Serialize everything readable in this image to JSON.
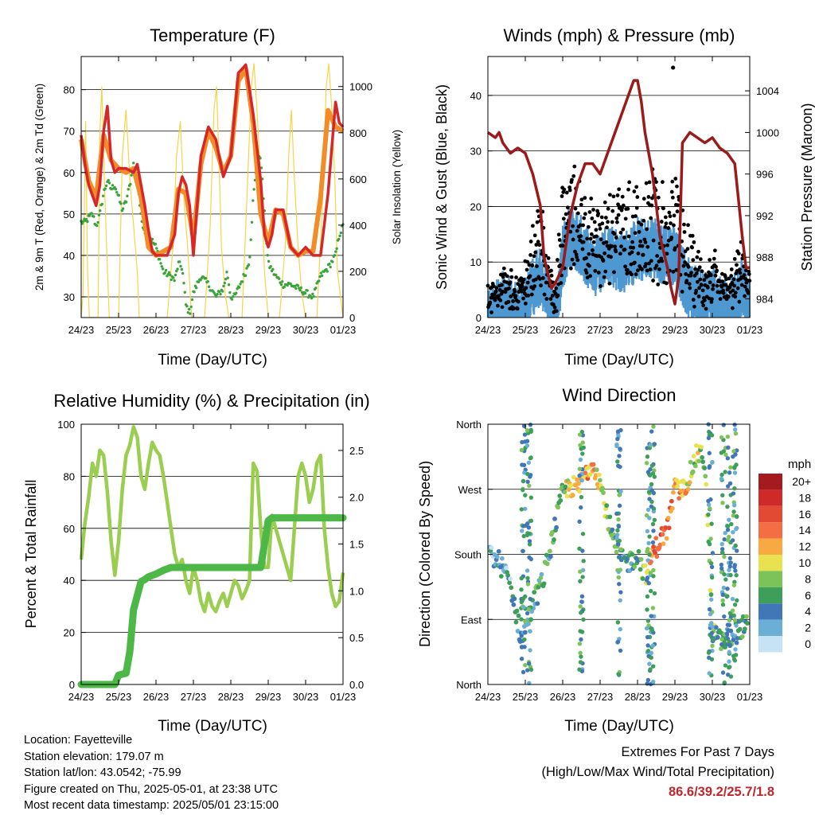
{
  "colors": {
    "temp2m": "#d62728",
    "temp9m": "#f28c28",
    "dewpoint": "#3aa33a",
    "solar": "#f5d44a",
    "gust": "#000000",
    "wind": "#4f98d1",
    "pressure": "#9b1b1b",
    "rh": "#9acd50",
    "precip": "#4db847"
  },
  "info": {
    "location": "Location: Fayetteville",
    "elevation": "Station elevation: 179.07 m",
    "latlon": "Station lat/lon: 43.0542; -75.99",
    "created": "Figure created on Thu, 2025-05-01, at 23:38 UTC",
    "recent": "Most recent data timestamp: 2025/05/01 23:15:00"
  },
  "extremes": {
    "title": "Extremes For Past 7 Days",
    "subtitle": "(High/Low/Max Wind/Total Precipitation)",
    "values": "86.6/39.2/25.7/1.8"
  },
  "chart_data": [
    {
      "type": "line",
      "title": "Temperature (F)",
      "xlabel": "Time (Day/UTC)",
      "ylabel": "2m & 9m T (Red, Orange) & 2m Td (Green)",
      "y2label": "Solar Insolation (Yellow)",
      "xticks": [
        "24/23",
        "25/23",
        "26/23",
        "27/23",
        "28/23",
        "29/23",
        "30/23",
        "01/23"
      ],
      "xlim": [
        0,
        7
      ],
      "ylim": [
        25,
        88
      ],
      "yticks": [
        30,
        40,
        50,
        60,
        70,
        80
      ],
      "y2lim": [
        0,
        1130
      ],
      "y2ticks": [
        0,
        200,
        400,
        600,
        800,
        1000
      ],
      "grid": true,
      "series": [
        {
          "name": "2m T",
          "x": [
            0,
            0.1,
            0.2,
            0.4,
            0.5,
            0.6,
            0.7,
            0.8,
            0.9,
            1.0,
            1.2,
            1.4,
            1.5,
            1.7,
            1.8,
            1.9,
            2.0,
            2.1,
            2.3,
            2.5,
            2.6,
            2.7,
            2.8,
            2.9,
            3.0,
            3.2,
            3.4,
            3.6,
            3.8,
            4.0,
            4.2,
            4.4,
            4.6,
            4.8,
            4.9,
            5.0,
            5.1,
            5.2,
            5.4,
            5.6,
            5.8,
            6.0,
            6.2,
            6.4,
            6.6,
            6.8,
            6.9,
            7.0
          ],
          "values": [
            69,
            62,
            57,
            52,
            57,
            70,
            76,
            63,
            60,
            61,
            61,
            60,
            62,
            52,
            46,
            41,
            40,
            40,
            40,
            45,
            55,
            59,
            57,
            52,
            40,
            64,
            71,
            68,
            59,
            64,
            84,
            86,
            74,
            58,
            45,
            42,
            45,
            51,
            51,
            42,
            40,
            42,
            40,
            40,
            55,
            77,
            72,
            71
          ]
        },
        {
          "name": "9m T",
          "x": [
            0,
            0.2,
            0.4,
            0.6,
            0.8,
            1.0,
            1.2,
            1.4,
            1.6,
            1.8,
            2.0,
            2.2,
            2.4,
            2.6,
            2.8,
            3.0,
            3.2,
            3.4,
            3.6,
            3.8,
            4.0,
            4.2,
            4.4,
            4.6,
            4.8,
            5.0,
            5.2,
            5.4,
            5.6,
            5.8,
            6.0,
            6.2,
            6.4,
            6.6,
            6.8,
            7.0
          ],
          "values": [
            68,
            58,
            54,
            69,
            63,
            61,
            60,
            61,
            54,
            42,
            40,
            41,
            42,
            56,
            55,
            44,
            62,
            70,
            66,
            60,
            64,
            82,
            85,
            72,
            50,
            43,
            51,
            50,
            42,
            40,
            41,
            41,
            54,
            75,
            71,
            70
          ]
        },
        {
          "name": "2m Td",
          "x": [
            0,
            0.1,
            0.2,
            0.3,
            0.4,
            0.5,
            0.6,
            0.7,
            0.8,
            0.9,
            1.0,
            1.1,
            1.2,
            1.3,
            1.4,
            1.5,
            1.6,
            1.7,
            1.8,
            2.0,
            2.2,
            2.4,
            2.5,
            2.6,
            2.7,
            2.8,
            2.9,
            3.0,
            3.2,
            3.4,
            3.6,
            3.8,
            3.9,
            4.0,
            4.1,
            4.2,
            4.4,
            4.5,
            4.6,
            4.7,
            4.8,
            4.9,
            5.0,
            5.2,
            5.4,
            5.6,
            5.8,
            6.0,
            6.2,
            6.4,
            6.6,
            6.8,
            6.9,
            7.0
          ],
          "values": [
            48,
            48,
            49,
            50,
            47,
            50,
            55,
            58,
            56,
            57,
            54,
            51,
            53,
            57,
            62,
            59,
            49,
            46,
            45,
            42,
            36,
            35,
            34,
            38,
            37,
            28,
            26,
            31,
            35,
            33,
            30,
            32,
            36,
            30,
            30,
            32,
            36,
            39,
            54,
            62,
            64,
            50,
            38,
            35,
            33,
            33,
            32,
            31,
            30,
            35,
            37,
            40,
            45,
            47
          ]
        },
        {
          "name": "Solar",
          "axis": "y2",
          "x": [
            0,
            0.05,
            0.12,
            0.17,
            0.22,
            0.3,
            0.45,
            0.5,
            0.55,
            0.62,
            0.68,
            0.75,
            0.9,
            1.0,
            1.1,
            1.2,
            1.3,
            1.4,
            1.5,
            1.55,
            1.65,
            1.75,
            1.85,
            2.0,
            2.3,
            2.45,
            2.55,
            2.65,
            2.75,
            2.85,
            2.95,
            3.3,
            3.45,
            3.55,
            3.62,
            3.68,
            3.75,
            3.85,
            3.95,
            4.3,
            4.45,
            4.55,
            4.62,
            4.7,
            4.8,
            4.9,
            5.0,
            5.3,
            5.45,
            5.55,
            5.62,
            5.7,
            5.8,
            5.9,
            6.0,
            6.3,
            6.45,
            6.55,
            6.62,
            6.7,
            6.78,
            6.85,
            7.0
          ],
          "values": [
            0,
            100,
            850,
            200,
            0,
            0,
            0,
            800,
            1000,
            600,
            300,
            0,
            0,
            0,
            700,
            900,
            600,
            400,
            200,
            0,
            0,
            0,
            0,
            0,
            0,
            300,
            700,
            850,
            500,
            300,
            0,
            0,
            400,
            900,
            1000,
            700,
            300,
            100,
            0,
            0,
            600,
            1000,
            1100,
            900,
            600,
            200,
            0,
            0,
            300,
            700,
            900,
            600,
            300,
            100,
            0,
            0,
            500,
            1000,
            1100,
            900,
            600,
            200,
            0
          ]
        }
      ]
    },
    {
      "type": "scatter",
      "title": "Winds (mph) & Pressure (mb)",
      "xlabel": "Time (Day/UTC)",
      "ylabel": "Sonic Wind & Gust (Blue, Black)",
      "y2label": "Station Pressure (Maroon)",
      "xticks": [
        "24/23",
        "25/23",
        "26/23",
        "27/23",
        "28/23",
        "29/23",
        "30/23",
        "01/23"
      ],
      "xlim": [
        0,
        7
      ],
      "ylim": [
        0,
        47
      ],
      "yticks": [
        0,
        10,
        20,
        30,
        40
      ],
      "y2lim": [
        982.2,
        1007.3
      ],
      "y2ticks": [
        984,
        988,
        992,
        996,
        1000,
        1004
      ],
      "grid": true,
      "series": [
        {
          "name": "Gust envelope",
          "x": [
            0,
            0.2,
            0.4,
            0.6,
            0.8,
            1.0,
            1.2,
            1.4,
            1.6,
            1.8,
            2.0,
            2.2,
            2.4,
            2.6,
            2.8,
            3.0,
            3.2,
            3.4,
            3.6,
            3.8,
            4.0,
            4.2,
            4.4,
            4.6,
            4.8,
            5.0,
            5.2,
            5.4,
            5.6,
            5.8,
            6.0,
            6.2,
            6.4,
            6.6,
            6.8,
            7.0
          ],
          "values": [
            5,
            6,
            8,
            7,
            6,
            9,
            15,
            20,
            12,
            3,
            25,
            30,
            28,
            24,
            20,
            22,
            25,
            24,
            22,
            23,
            26,
            25,
            27,
            25,
            23,
            24,
            20,
            14,
            12,
            10,
            12,
            8,
            6,
            10,
            14,
            8
          ]
        },
        {
          "name": "Wind envelope",
          "x": [
            0,
            0.2,
            0.4,
            0.6,
            0.8,
            1.0,
            1.2,
            1.4,
            1.6,
            1.8,
            2.0,
            2.2,
            2.4,
            2.6,
            2.8,
            3.0,
            3.2,
            3.4,
            3.6,
            3.8,
            4.0,
            4.2,
            4.4,
            4.6,
            4.8,
            5.0,
            5.2,
            5.4,
            5.6,
            5.8,
            6.0,
            6.2,
            6.4,
            6.6,
            6.8,
            7.0
          ],
          "values": [
            2,
            3,
            5,
            4,
            3,
            4,
            8,
            10,
            6,
            1,
            13,
            17,
            16,
            14,
            11,
            12,
            14,
            13,
            12,
            13,
            15,
            14,
            15,
            14,
            13,
            14,
            10,
            7,
            6,
            5,
            6,
            4,
            3,
            5,
            8,
            4
          ]
        },
        {
          "name": "Pressure",
          "axis": "y2",
          "x": [
            0,
            0.2,
            0.3,
            0.4,
            0.6,
            0.8,
            1.0,
            1.2,
            1.4,
            1.5,
            1.7,
            1.8,
            2.0,
            2.2,
            2.4,
            2.6,
            2.8,
            3.0,
            3.2,
            3.4,
            3.6,
            3.8,
            3.9,
            4.0,
            4.1,
            4.2,
            4.4,
            4.6,
            4.8,
            4.9,
            5.0,
            5.1,
            5.2,
            5.4,
            5.6,
            5.8,
            6.0,
            6.2,
            6.4,
            6.6,
            6.8,
            6.9,
            7.0
          ],
          "values": [
            1000,
            999.5,
            1000,
            999,
            998,
            998.5,
            998,
            996,
            993,
            988,
            985,
            985.5,
            987,
            992,
            995,
            997,
            997,
            996,
            998,
            1000,
            1002,
            1004,
            1005,
            1005,
            1003,
            1000,
            996,
            990,
            987,
            985,
            983.5,
            986,
            999,
            1000,
            999.5,
            999,
            999.5,
            998.5,
            998,
            997,
            990,
            987,
            987
          ]
        },
        {
          "name": "Outlier gust",
          "x": [
            4.95
          ],
          "values": [
            45
          ]
        }
      ]
    },
    {
      "type": "line",
      "title": "Relative Humidity (%) & Precipitation (in)",
      "xlabel": "Time (Day/UTC)",
      "ylabel": "Percent & Total Rainfall",
      "xticks": [
        "24/23",
        "25/23",
        "26/23",
        "27/23",
        "28/23",
        "29/23",
        "30/23",
        "01/23"
      ],
      "xlim": [
        0,
        7
      ],
      "ylim": [
        0,
        100
      ],
      "yticks": [
        0,
        20,
        40,
        60,
        80,
        100
      ],
      "y2lim": [
        0,
        2.78
      ],
      "y2ticks": [
        "0.0",
        "0.5",
        "1.0",
        "1.5",
        "2.0",
        "2.5"
      ],
      "grid": true,
      "series": [
        {
          "name": "RH",
          "x": [
            0,
            0.1,
            0.2,
            0.3,
            0.4,
            0.5,
            0.6,
            0.7,
            0.8,
            0.9,
            1.0,
            1.1,
            1.2,
            1.3,
            1.4,
            1.5,
            1.6,
            1.7,
            1.8,
            1.9,
            2.0,
            2.1,
            2.2,
            2.3,
            2.4,
            2.5,
            2.6,
            2.7,
            2.8,
            2.9,
            3.0,
            3.1,
            3.2,
            3.3,
            3.4,
            3.5,
            3.6,
            3.7,
            3.8,
            3.9,
            4.0,
            4.1,
            4.2,
            4.3,
            4.4,
            4.5,
            4.6,
            4.7,
            4.8,
            4.9,
            5.0,
            5.1,
            5.2,
            5.3,
            5.4,
            5.5,
            5.6,
            5.7,
            5.8,
            5.9,
            6.0,
            6.1,
            6.2,
            6.3,
            6.4,
            6.5,
            6.6,
            6.7,
            6.8,
            6.9,
            7.0
          ],
          "values": [
            48,
            62,
            72,
            85,
            80,
            90,
            88,
            74,
            55,
            42,
            55,
            75,
            88,
            92,
            99,
            95,
            80,
            75,
            85,
            93,
            90,
            88,
            80,
            70,
            60,
            50,
            45,
            48,
            40,
            35,
            45,
            40,
            32,
            28,
            35,
            30,
            28,
            32,
            35,
            30,
            35,
            40,
            38,
            33,
            36,
            40,
            85,
            82,
            60,
            45,
            45,
            65,
            60,
            55,
            50,
            45,
            40,
            60,
            80,
            85,
            80,
            70,
            75,
            85,
            88,
            60,
            45,
            35,
            30,
            32,
            43
          ]
        },
        {
          "name": "Precip",
          "axis": "y2",
          "x": [
            0,
            0.9,
            1.0,
            1.2,
            1.3,
            1.4,
            1.5,
            1.6,
            1.7,
            1.8,
            2.0,
            2.2,
            2.4,
            2.6,
            4.0,
            4.8,
            4.9,
            5.0,
            5.1,
            7.0
          ],
          "values": [
            0,
            0,
            0.1,
            0.12,
            0.35,
            0.8,
            0.95,
            1.1,
            1.12,
            1.15,
            1.18,
            1.22,
            1.25,
            1.25,
            1.25,
            1.25,
            1.5,
            1.75,
            1.78,
            1.78
          ]
        }
      ]
    },
    {
      "type": "scatter",
      "title": "Wind Direction",
      "xlabel": "Time (Day/UTC)",
      "ylabel": "Direction (Colored By Speed)",
      "xticks": [
        "24/23",
        "25/23",
        "26/23",
        "27/23",
        "28/23",
        "29/23",
        "30/23",
        "01/23"
      ],
      "xlim": [
        0,
        7
      ],
      "ylim": [
        0,
        360
      ],
      "yticks": [
        "North",
        "East",
        "South",
        "West",
        "North"
      ],
      "grid": true,
      "legend": {
        "title": "mph",
        "labels": [
          "20+",
          "18",
          "16",
          "14",
          "12",
          "10",
          "8",
          "6",
          "4",
          "2",
          "0"
        ],
        "colors": [
          "#a51a1e",
          "#cf2a2a",
          "#e34a33",
          "#f46d43",
          "#f9a941",
          "#e8e250",
          "#7cc35a",
          "#3d9f5a",
          "#4177b7",
          "#6baed6",
          "#c6e2f5"
        ]
      }
    }
  ]
}
